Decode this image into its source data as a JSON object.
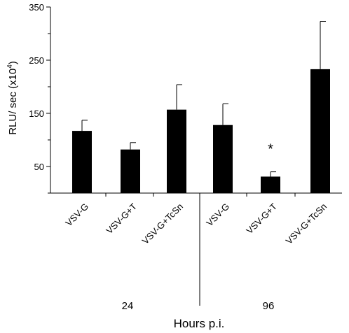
{
  "chart_data": {
    "type": "bar",
    "title": "",
    "ylabel": "RLU/ sec (x10",
    "ylabel_sup": "4",
    "ylabel_close": ")",
    "xlabel": "Hours p.i.",
    "ylim": [
      0,
      350
    ],
    "yticks": [
      50,
      150,
      250,
      350
    ],
    "grid": false,
    "groups": [
      {
        "label": "24",
        "bars": [
          {
            "category": "VSV-G",
            "value": 117,
            "error": 20
          },
          {
            "category": "VSV-G+T",
            "value": 82,
            "error": 13
          },
          {
            "category": "VSV-G+TcSn",
            "value": 157,
            "error": 47
          }
        ]
      },
      {
        "label": "96",
        "bars": [
          {
            "category": "VSV-G",
            "value": 128,
            "error": 40
          },
          {
            "category": "VSV-G+T",
            "value": 31,
            "error": 9,
            "annotation": "*"
          },
          {
            "category": "VSV-G+TcSn",
            "value": 233,
            "error": 90
          }
        ]
      }
    ],
    "colors": {
      "bar": "#000000",
      "axis": "#000000"
    }
  }
}
